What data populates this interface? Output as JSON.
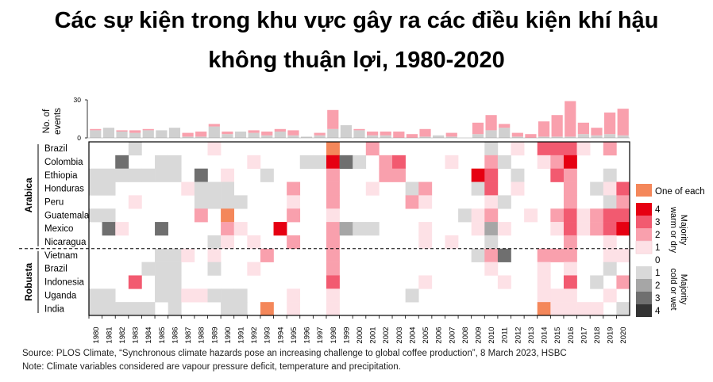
{
  "title_line1": "Các sự kiện trong khu vực gây ra các điều kiện khí hậu",
  "title_line2": "không thuận lợi, 1980-2020",
  "source": "Source: PLOS Climate, “Synchronous climate hazards pose an increasing challenge to global coffee production”, 8 March 2023, HSBC",
  "note": "Note: Climate variables considered are vapour pressure deficit, temperature and precipitation.",
  "colors": {
    "warm": [
      "#ffffff",
      "#fde1e6",
      "#f9a0ad",
      "#f25a70",
      "#e60012"
    ],
    "cold": [
      "#ffffff",
      "#d9d9d9",
      "#a6a6a6",
      "#6f6f6f",
      "#333333"
    ],
    "each": "#f4875a",
    "bar_warm": "#f9a0ad",
    "bar_cold": "#d0d0d0"
  },
  "chart_data": {
    "type": "heatmap",
    "years": [
      1980,
      1981,
      1982,
      1983,
      1984,
      1985,
      1986,
      1987,
      1988,
      1989,
      1990,
      1991,
      1992,
      1993,
      1994,
      1995,
      1996,
      1997,
      1998,
      1999,
      2000,
      2001,
      2002,
      2003,
      2004,
      2005,
      2006,
      2007,
      2008,
      2009,
      2010,
      2011,
      2012,
      2013,
      2014,
      2015,
      2016,
      2017,
      2018,
      2019,
      2020
    ],
    "groups": [
      {
        "name": "Arabica",
        "countries": [
          "Brazil",
          "Colombia",
          "Ethiopia",
          "Honduras",
          "Peru",
          "Guatemala",
          "Mexico",
          "Nicaragua"
        ]
      },
      {
        "name": "Robusta",
        "countries": [
          "Vietnam",
          "Brazil",
          "Indonesia",
          "Uganda",
          "India"
        ]
      }
    ],
    "cell_encoding": "positive = majority warm or dry (1-4), negative = majority cold or wet (1-4), 0 = none, 'E' = one of each",
    "rows": [
      [
        0,
        0,
        0,
        -1,
        0,
        0,
        0,
        0,
        0,
        1,
        0,
        0,
        0,
        0,
        0,
        0,
        0,
        0,
        "E",
        0,
        0,
        2,
        0,
        0,
        0,
        0,
        0,
        0,
        0,
        0,
        -1,
        0,
        1,
        0,
        3,
        3,
        3,
        1,
        0,
        2,
        0
      ],
      [
        0,
        0,
        -3,
        0,
        0,
        -1,
        -1,
        0,
        0,
        0,
        0,
        0,
        1,
        0,
        0,
        0,
        -1,
        -1,
        4,
        -3,
        -1,
        0,
        2,
        3,
        0,
        0,
        0,
        1,
        0,
        0,
        2,
        -1,
        0,
        0,
        1,
        2,
        4,
        0,
        0,
        0,
        0
      ],
      [
        -1,
        -1,
        -1,
        -1,
        -1,
        -1,
        -1,
        0,
        -3,
        0,
        1,
        0,
        0,
        -1,
        0,
        0,
        0,
        0,
        2,
        0,
        0,
        0,
        2,
        2,
        0,
        0,
        0,
        0,
        0,
        4,
        3,
        0,
        -1,
        0,
        0,
        3,
        2,
        0,
        0,
        -1,
        0
      ],
      [
        -1,
        -1,
        0,
        0,
        0,
        0,
        0,
        1,
        -1,
        -1,
        -1,
        0,
        0,
        0,
        0,
        2,
        0,
        0,
        2,
        0,
        0,
        1,
        0,
        0,
        -1,
        2,
        0,
        0,
        0,
        -1,
        3,
        0,
        1,
        0,
        0,
        0,
        2,
        0,
        -1,
        1,
        3
      ],
      [
        0,
        0,
        0,
        1,
        0,
        0,
        0,
        0,
        -1,
        -1,
        -1,
        -1,
        0,
        0,
        0,
        1,
        0,
        0,
        2,
        0,
        0,
        0,
        0,
        0,
        2,
        1,
        0,
        0,
        0,
        0,
        1,
        -1,
        0,
        0,
        0,
        0,
        2,
        0,
        0,
        -1,
        2
      ],
      [
        -1,
        -1,
        0,
        0,
        0,
        0,
        0,
        0,
        2,
        0,
        "E",
        0,
        0,
        0,
        0,
        2,
        0,
        0,
        1,
        0,
        0,
        0,
        0,
        0,
        0,
        0,
        0,
        0,
        -1,
        1,
        2,
        0,
        0,
        1,
        0,
        2,
        3,
        1,
        2,
        3,
        3
      ],
      [
        0,
        -3,
        1,
        0,
        0,
        -3,
        0,
        0,
        0,
        0,
        2,
        1,
        0,
        0,
        4,
        0,
        0,
        0,
        2,
        -2,
        -1,
        -1,
        0,
        0,
        0,
        1,
        0,
        0,
        0,
        1,
        -2,
        1,
        0,
        0,
        0,
        1,
        3,
        1,
        2,
        3,
        4
      ],
      [
        0,
        0,
        0,
        0,
        0,
        0,
        0,
        0,
        0,
        -1,
        1,
        0,
        1,
        0,
        0,
        2,
        0,
        0,
        2,
        0,
        0,
        0,
        0,
        0,
        0,
        1,
        0,
        1,
        0,
        0,
        -1,
        0,
        0,
        0,
        0,
        0,
        2,
        0,
        0,
        1,
        0
      ],
      [
        0,
        0,
        0,
        0,
        0,
        -1,
        -1,
        1,
        0,
        1,
        0,
        0,
        0,
        2,
        0,
        0,
        0,
        0,
        2,
        0,
        0,
        0,
        0,
        0,
        0,
        0,
        0,
        0,
        0,
        -1,
        2,
        -3,
        0,
        0,
        2,
        2,
        2,
        0,
        0,
        1,
        1
      ],
      [
        0,
        0,
        0,
        0,
        -1,
        -1,
        -1,
        0,
        0,
        -1,
        0,
        0,
        1,
        0,
        0,
        0,
        0,
        0,
        2,
        0,
        0,
        0,
        0,
        0,
        0,
        0,
        0,
        0,
        0,
        0,
        1,
        0,
        0,
        0,
        1,
        0,
        1,
        0,
        0,
        -1,
        0
      ],
      [
        0,
        0,
        0,
        3,
        0,
        -1,
        -1,
        0,
        0,
        0,
        0,
        0,
        0,
        0,
        0,
        0,
        0,
        0,
        3,
        0,
        0,
        0,
        0,
        0,
        0,
        1,
        0,
        0,
        0,
        0,
        0,
        1,
        0,
        0,
        1,
        0,
        3,
        0,
        -1,
        0,
        2
      ],
      [
        -1,
        -1,
        0,
        0,
        0,
        -1,
        -1,
        1,
        1,
        -1,
        -1,
        -1,
        0,
        0,
        0,
        1,
        0,
        0,
        1,
        0,
        0,
        0,
        0,
        0,
        -1,
        0,
        0,
        0,
        0,
        0,
        0,
        0,
        0,
        0,
        1,
        1,
        1,
        0,
        0,
        1,
        0
      ],
      [
        -1,
        -1,
        -1,
        -1,
        -1,
        0,
        -1,
        0,
        0,
        0,
        -1,
        -1,
        0,
        "E",
        0,
        1,
        0,
        0,
        1,
        0,
        0,
        0,
        0,
        0,
        0,
        0,
        0,
        0,
        0,
        0,
        0,
        0,
        0,
        0,
        "E",
        1,
        1,
        1,
        1,
        0,
        -1
      ]
    ],
    "events_per_year": {
      "warm": [
        1,
        0,
        1,
        2,
        1,
        0,
        0,
        3,
        4,
        2,
        2,
        0,
        2,
        3,
        2,
        4,
        0,
        2,
        15,
        0,
        1,
        3,
        3,
        5,
        3,
        6,
        0,
        3,
        0,
        9,
        12,
        3,
        3,
        3,
        12,
        17,
        28,
        9,
        6,
        17,
        21
      ],
      "cold": [
        6,
        8,
        5,
        4,
        6,
        6,
        8,
        1,
        1,
        9,
        3,
        5,
        4,
        2,
        5,
        2,
        1,
        2,
        7,
        10,
        6,
        2,
        2,
        0,
        0,
        1,
        2,
        1,
        0,
        3,
        6,
        8,
        1,
        0,
        1,
        1,
        1,
        3,
        2,
        3,
        2
      ]
    },
    "bar_axis": {
      "label": "No. of events",
      "ticks": [
        0,
        30
      ],
      "ylim": [
        0,
        30
      ]
    },
    "legend": {
      "one_of_each": "One of each",
      "warm_levels": [
        "4",
        "3",
        "2",
        "1"
      ],
      "zero": "0",
      "cold_levels": [
        "1",
        "2",
        "3",
        "4"
      ],
      "warm_label": "Majority warm or dry",
      "cold_label": "Majority cold or wet"
    }
  }
}
